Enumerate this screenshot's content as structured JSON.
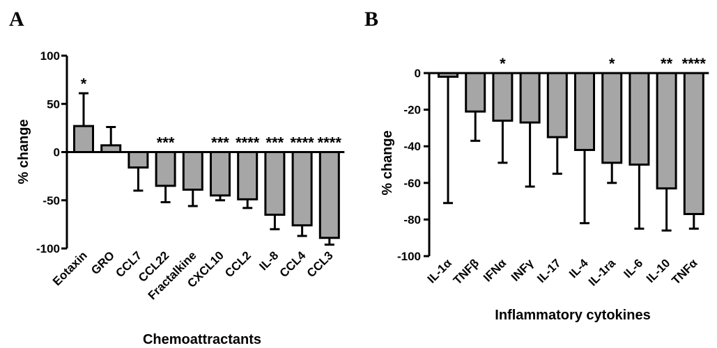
{
  "chart_data": [
    {
      "type": "bar",
      "panel": "A",
      "xlabel": "Chemoattractants",
      "ylabel": "% change",
      "ylim": [
        -100,
        100
      ],
      "yticks": [
        100,
        50,
        0,
        -50,
        -100
      ],
      "categories": [
        "Eotaxin",
        "GRO",
        "CCL7",
        "CCL22",
        "Fractalkine",
        "CXCL10",
        "CCL2",
        "IL-8",
        "CCL4",
        "CCL3"
      ],
      "values": [
        27,
        7,
        -16,
        -35,
        -39,
        -45,
        -49,
        -65,
        -76,
        -89
      ],
      "error": [
        34,
        19,
        24,
        17,
        17,
        5,
        9,
        15,
        11,
        7
      ],
      "significance": [
        "*",
        "",
        "",
        "***",
        "",
        "***",
        "****",
        "***",
        "****",
        "****"
      ]
    },
    {
      "type": "bar",
      "panel": "B",
      "xlabel": "Inflammatory cytokines",
      "ylabel": "% change",
      "ylim": [
        -100,
        0
      ],
      "yticks": [
        0,
        -20,
        -40,
        -60,
        -80,
        -100
      ],
      "categories": [
        "IL-1α",
        "TNFβ",
        "IFNα",
        "INFγ",
        "IL-17",
        "IL-4",
        "IL-1ra",
        "IL-6",
        "IL-10",
        "TNFα"
      ],
      "values": [
        -2,
        -21,
        -26,
        -27,
        -35,
        -42,
        -49,
        -50,
        -63,
        -77
      ],
      "error": [
        69,
        16,
        23,
        35,
        20,
        40,
        11,
        35,
        23,
        8
      ],
      "significance": [
        "",
        "",
        "*",
        "",
        "",
        "",
        "*",
        "",
        "**",
        "****"
      ]
    }
  ]
}
